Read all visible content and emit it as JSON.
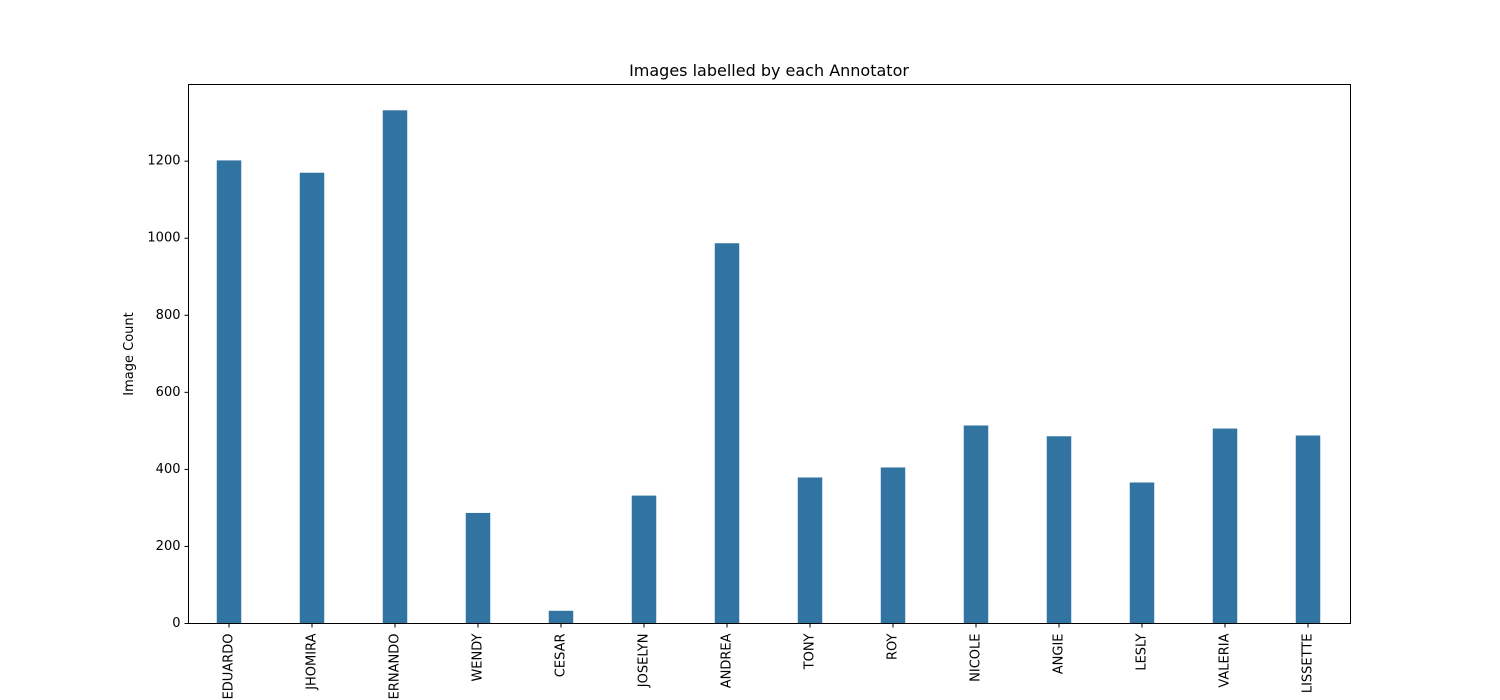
{
  "chart_data": {
    "type": "bar",
    "title": "Images labelled by each Annotator",
    "xlabel": "",
    "ylabel": "Image Count",
    "categories": [
      "EDUARDO",
      "JHOMIRA",
      "FERNANDO",
      "WENDY",
      "CESAR",
      "JOSELYN",
      "ANDREA",
      "TONY",
      "ROY",
      "NICOLE",
      "ANGIE",
      "LESLY",
      "VALERIA",
      "LISSETTE"
    ],
    "values": [
      1202,
      1170,
      1332,
      287,
      33,
      332,
      987,
      379,
      405,
      514,
      486,
      366,
      506,
      488
    ],
    "yticks": [
      0,
      200,
      400,
      600,
      800,
      1000,
      1200
    ],
    "ylim": [
      0,
      1399
    ],
    "grid": false,
    "legend": "none",
    "bar_color": "#3274a1"
  }
}
